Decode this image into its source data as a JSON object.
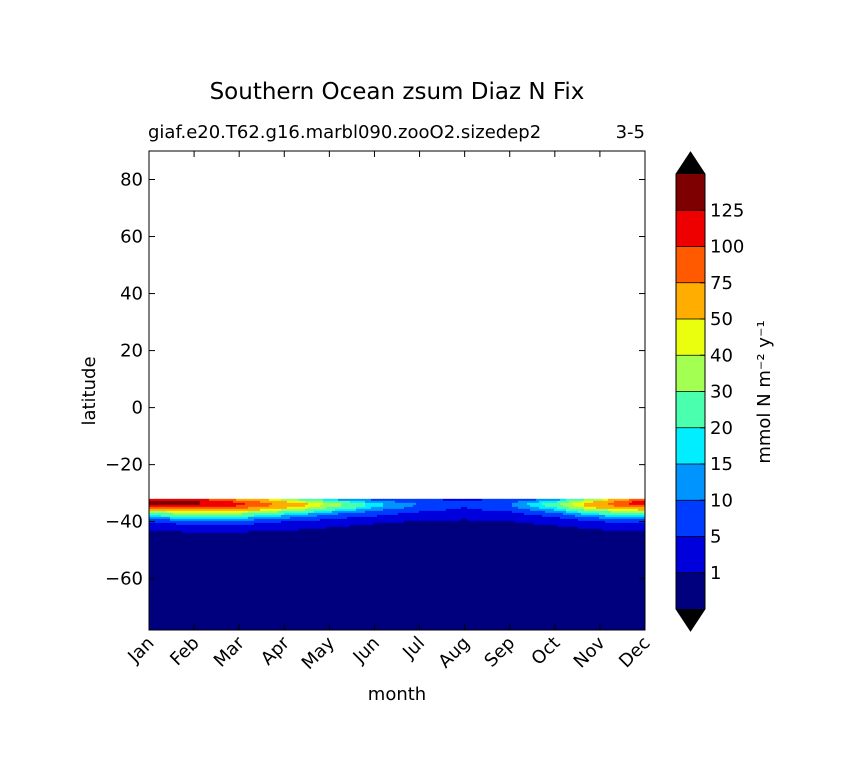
{
  "chart_data": {
    "type": "heatmap",
    "subtype": "filled-contour",
    "title": "Southern Ocean zsum Diaz N Fix",
    "subtitle_left": "giaf.e20.T62.g16.marbl090.zooO2.sizedep2",
    "subtitle_right": "3-5",
    "xlabel": "month",
    "ylabel": "latitude",
    "x_categories": [
      "Jan",
      "Feb",
      "Mar",
      "Apr",
      "May",
      "Jun",
      "Jul",
      "Aug",
      "Sep",
      "Oct",
      "Nov",
      "Dec"
    ],
    "y_ticks": [
      "80",
      "60",
      "40",
      "20",
      "0",
      "−20",
      "−40",
      "−60"
    ],
    "y_tick_values": [
      80,
      60,
      40,
      20,
      0,
      -20,
      -40,
      -60
    ],
    "ylim": [
      -78,
      90
    ],
    "data_max_latitude": -32,
    "colorbar": {
      "label": "mmol N m⁻² y⁻¹",
      "tick_labels": [
        "1",
        "5",
        "10",
        "15",
        "20",
        "30",
        "40",
        "50",
        "75",
        "100",
        "125"
      ],
      "levels": [
        1,
        5,
        10,
        15,
        20,
        30,
        40,
        50,
        75,
        100,
        125
      ],
      "colors": [
        "#00007f",
        "#0000dc",
        "#003cff",
        "#0094ff",
        "#00eeff",
        "#4affad",
        "#a4ff53",
        "#eaff0d",
        "#ffad00",
        "#ff5a00",
        "#ee0000",
        "#7f0000"
      ],
      "extend": "both",
      "extend_colors": [
        "#000000",
        "#000000"
      ]
    },
    "field": {
      "latitudes": [
        -32,
        -33,
        -34,
        -35,
        -36,
        -37,
        -38,
        -39,
        -40,
        -41,
        -42,
        -43,
        -44,
        -45,
        -78
      ],
      "rows": [
        [
          120,
          105,
          60,
          30,
          12,
          8,
          5,
          4,
          5,
          10,
          30,
          80
        ],
        [
          135,
          130,
          95,
          50,
          25,
          12,
          7,
          5,
          8,
          18,
          55,
          120
        ],
        [
          125,
          128,
          110,
          70,
          38,
          18,
          10,
          6,
          10,
          26,
          70,
          115
        ],
        [
          80,
          100,
          85,
          55,
          30,
          15,
          8,
          5,
          8,
          20,
          55,
          80
        ],
        [
          45,
          60,
          55,
          35,
          20,
          10,
          6,
          4,
          6,
          14,
          35,
          48
        ],
        [
          28,
          38,
          34,
          22,
          12,
          7,
          4,
          3,
          4,
          9,
          22,
          30
        ],
        [
          18,
          24,
          22,
          14,
          8,
          5,
          2.5,
          2,
          2.5,
          6,
          14,
          19
        ],
        [
          10,
          14,
          13,
          9,
          5,
          2.5,
          1.5,
          1.2,
          1.5,
          3.5,
          8,
          11
        ],
        [
          6,
          8,
          8,
          5,
          3,
          1.5,
          0.8,
          0.6,
          0.9,
          2,
          5,
          6
        ],
        [
          3.5,
          5,
          5,
          3,
          1.6,
          0.8,
          0.4,
          0.3,
          0.5,
          1.2,
          3,
          3.5
        ],
        [
          2,
          3,
          3,
          2,
          1,
          0.4,
          0.2,
          0.2,
          0.3,
          0.6,
          1.6,
          2
        ],
        [
          1.2,
          1.6,
          1.6,
          1.1,
          0.5,
          0.2,
          0.1,
          0.1,
          0.1,
          0.3,
          0.9,
          1.2
        ],
        [
          0.5,
          0.7,
          0.7,
          0.4,
          0.2,
          0.1,
          0,
          0,
          0,
          0.1,
          0.3,
          0.5
        ],
        [
          0.1,
          0.2,
          0.2,
          0.1,
          0,
          0,
          0,
          0,
          0,
          0,
          0.1,
          0.1
        ],
        [
          0,
          0,
          0,
          0,
          0,
          0,
          0,
          0,
          0,
          0,
          0,
          0
        ]
      ]
    }
  }
}
